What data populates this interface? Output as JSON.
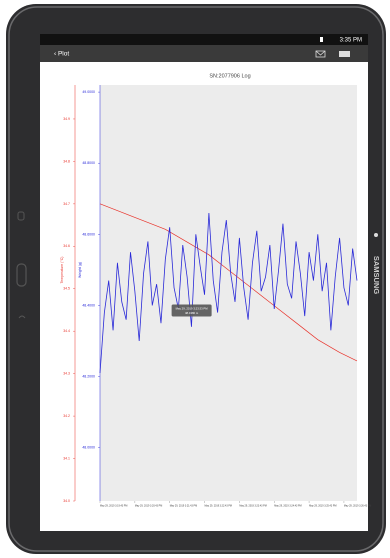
{
  "status_bar": {
    "time": "3:35 PM"
  },
  "app_bar": {
    "back": "‹ Plot"
  },
  "device": {
    "brand": "SAMSUNG"
  },
  "chart_data": {
    "type": "line",
    "title": "SN:2077906 Log",
    "ylabel": "Temperature (°C)",
    "y2label": "Weight (g)",
    "x": [
      0,
      1,
      2,
      3,
      4,
      5,
      6,
      7,
      8,
      9,
      10,
      11,
      12,
      13,
      14,
      15,
      16,
      17,
      18,
      19,
      20,
      21,
      22,
      23,
      24,
      25,
      26,
      27,
      28,
      29,
      30,
      31,
      32,
      33,
      34,
      35,
      36,
      37,
      38,
      39,
      40,
      41,
      42,
      43,
      44,
      45,
      46,
      47,
      48,
      49,
      50,
      51,
      52,
      53,
      54,
      55,
      56,
      57,
      58,
      59
    ],
    "xlim": [
      0,
      59
    ],
    "xticks": [
      {
        "value": 0,
        "label": "May 29, 2019 3:19:43 PM"
      },
      {
        "value": 8,
        "label": "May 29, 2019 3:20:43 PM"
      },
      {
        "value": 16,
        "label": "May 29, 2019 3:21:43 PM"
      },
      {
        "value": 24,
        "label": "May 29, 2019 3:22:43 PM"
      },
      {
        "value": 32,
        "label": "May 29, 2019 3:23:43 PM"
      },
      {
        "value": 40,
        "label": "May 29, 2019 3:24:43 PM"
      },
      {
        "value": 48,
        "label": "May 29, 2019 3:25:43 PM"
      },
      {
        "value": 56,
        "label": "May 29, 2019 3:26:43 PM"
      }
    ],
    "ylim": [
      34.0,
      34.98
    ],
    "yticks": [
      34.9,
      34.8,
      34.7,
      34.6,
      34.5,
      34.4,
      34.3,
      34.2,
      34.1,
      {
        "value": 34.0,
        "label": "34.0"
      }
    ],
    "y2lim": [
      47.85,
      49.02
    ],
    "y2ticks": [
      {
        "value": 49.0,
        "label": "49.0000"
      },
      {
        "value": 48.8,
        "label": "48.8000"
      },
      {
        "value": 48.6,
        "label": "48.6000"
      },
      {
        "value": 48.4,
        "label": "48.4000"
      },
      {
        "value": 48.2,
        "label": "48.2000"
      },
      {
        "value": 48.0,
        "label": "48.0000"
      }
    ],
    "grid": false,
    "series": [
      {
        "name": "Temperature",
        "color": "#e8342c",
        "axis": "y",
        "x": [
          0,
          5,
          10,
          15,
          20,
          25,
          30,
          35,
          40,
          45,
          50,
          55,
          59
        ],
        "values": [
          34.7,
          34.68,
          34.66,
          34.64,
          34.61,
          34.58,
          34.54,
          34.5,
          34.46,
          34.42,
          34.38,
          34.35,
          34.33
        ]
      },
      {
        "name": "Weight",
        "color": "#2a2ad8",
        "axis": "y2",
        "values": [
          48.21,
          48.38,
          48.47,
          48.33,
          48.52,
          48.41,
          48.36,
          48.55,
          48.44,
          48.3,
          48.49,
          48.58,
          48.4,
          48.46,
          48.35,
          48.53,
          48.62,
          48.45,
          48.39,
          48.57,
          48.48,
          48.34,
          48.6,
          48.51,
          48.43,
          48.66,
          48.47,
          48.38,
          48.55,
          48.64,
          48.49,
          48.41,
          48.59,
          48.45,
          48.36,
          48.52,
          48.61,
          48.44,
          48.48,
          48.57,
          48.39,
          48.5,
          48.63,
          48.46,
          48.42,
          48.58,
          48.49,
          48.37,
          48.55,
          48.47,
          48.6,
          48.44,
          48.52,
          48.33,
          48.48,
          48.59,
          48.45,
          48.4,
          48.56,
          48.47
        ]
      }
    ],
    "tooltip": {
      "title": "May 29, 2019 3:23:33 PM",
      "value": "48.4380 m"
    }
  }
}
